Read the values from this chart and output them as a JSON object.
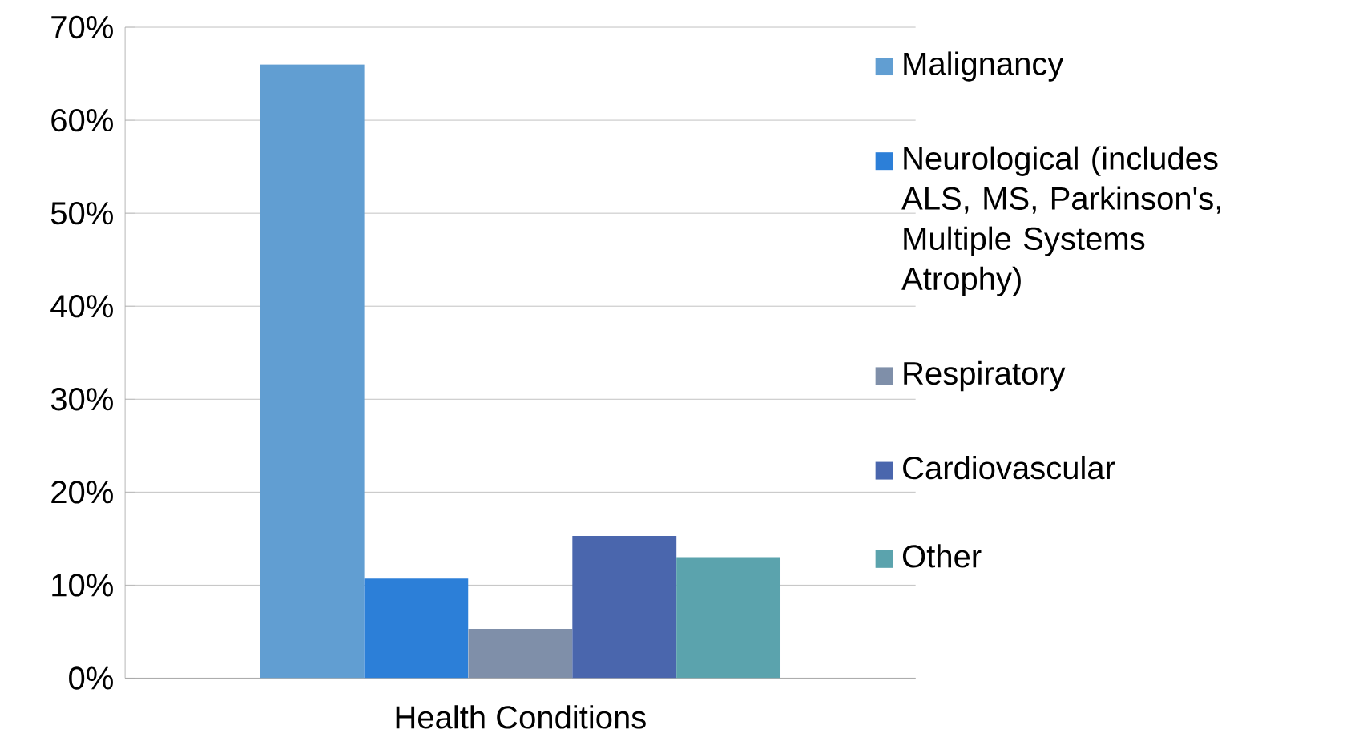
{
  "chart_data": {
    "type": "bar",
    "categories": [
      "Health Conditions"
    ],
    "series": [
      {
        "name": "Malignancy",
        "color": "#619ed2",
        "values": [
          66.0
        ]
      },
      {
        "name": "Neurological (includes ALS, MS, Parkinson's, Multiple Systems Atrophy)",
        "color": "#2c7fd8",
        "values": [
          10.7
        ]
      },
      {
        "name": "Respiratory",
        "color": "#7f8fa9",
        "values": [
          5.3
        ]
      },
      {
        "name": "Cardiovascular",
        "color": "#4a66ad",
        "values": [
          15.3
        ]
      },
      {
        "name": "Other",
        "color": "#5ba3ad",
        "values": [
          13.0
        ]
      }
    ],
    "ylim": [
      0,
      70
    ],
    "yticks": [
      {
        "value": 0,
        "label": "0%"
      },
      {
        "value": 10,
        "label": "10%"
      },
      {
        "value": 20,
        "label": "20%"
      },
      {
        "value": 30,
        "label": "30%"
      },
      {
        "value": 40,
        "label": "40%"
      },
      {
        "value": 50,
        "label": "50%"
      },
      {
        "value": 60,
        "label": "60%"
      },
      {
        "value": 70,
        "label": "70%"
      }
    ],
    "grid": "y",
    "legend": "right"
  }
}
